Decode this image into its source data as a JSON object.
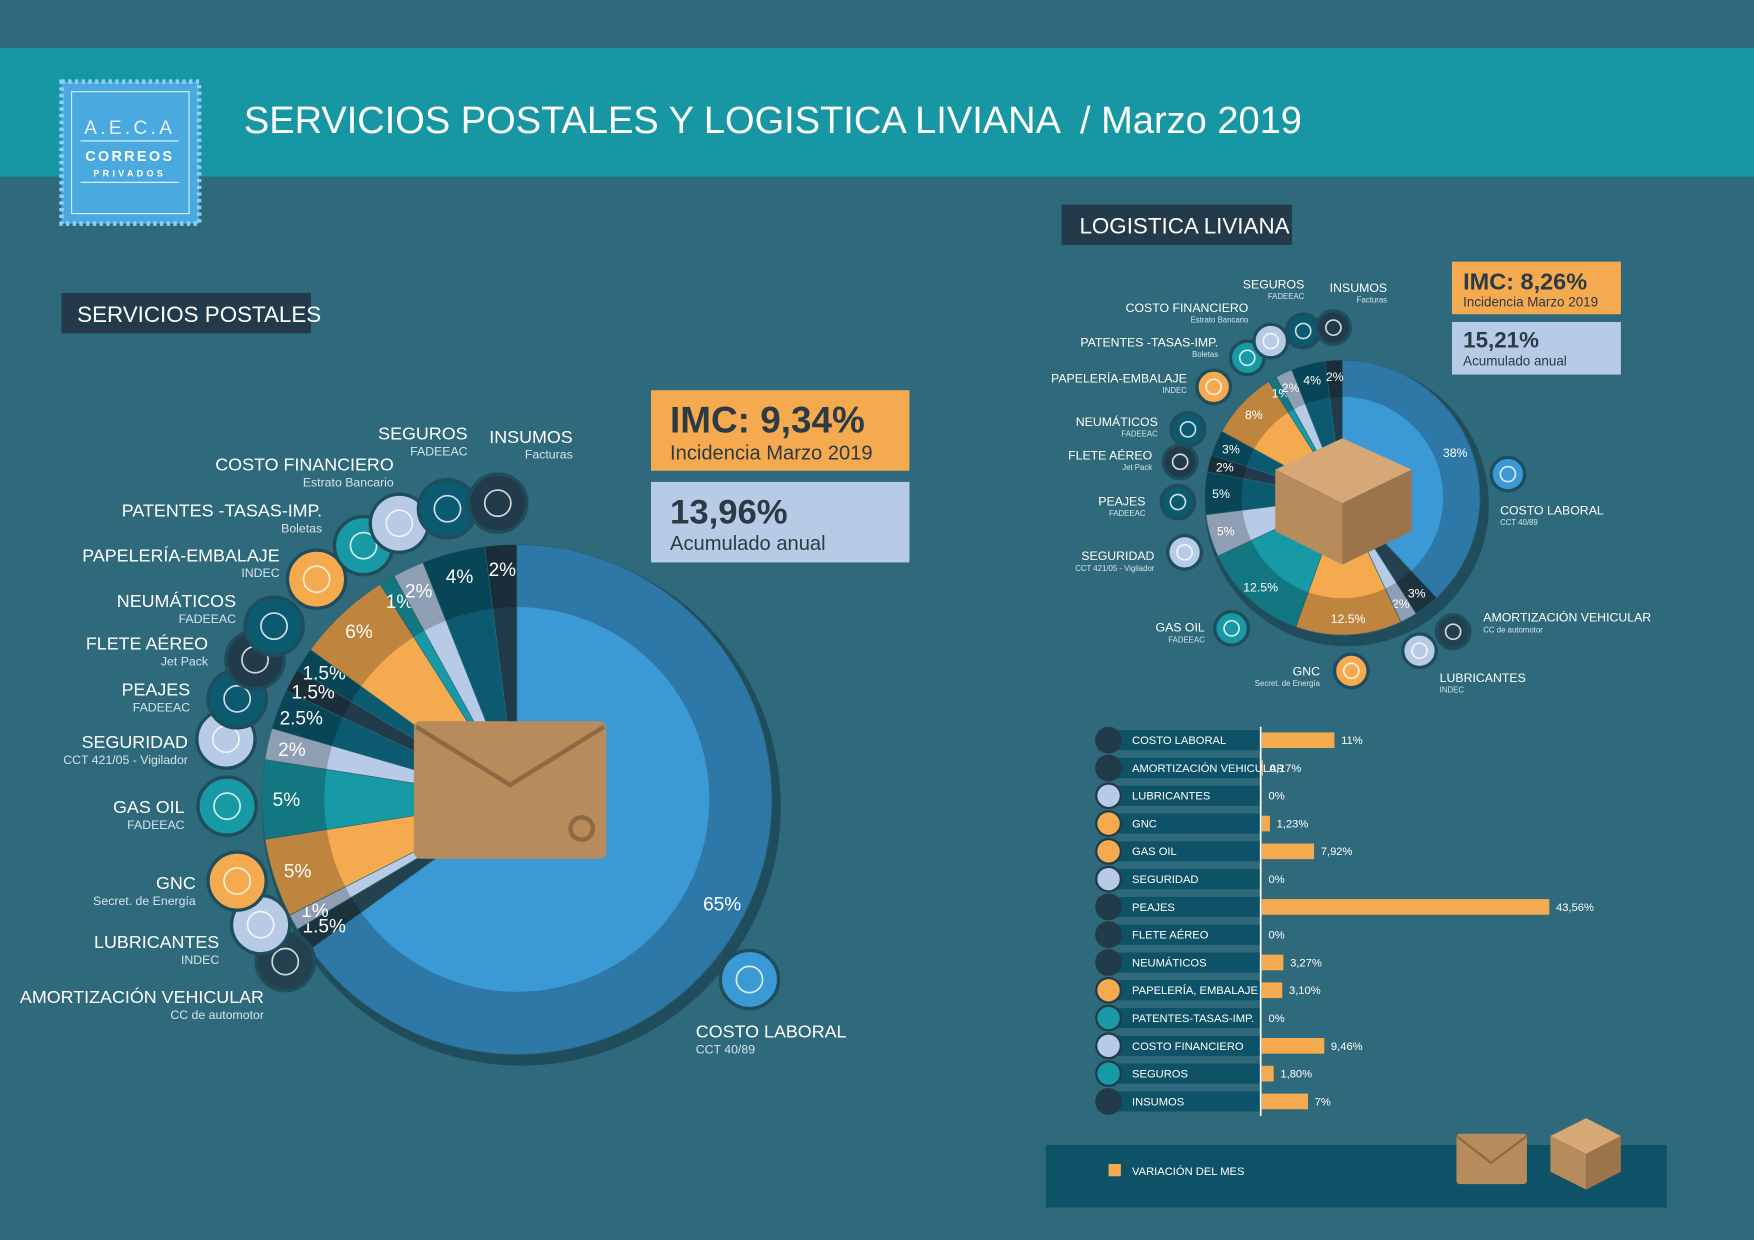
{
  "header": {
    "logo": [
      "A.E.C.A",
      "CORREOS",
      "PRIVADOS"
    ],
    "title": "SERVICIOS POSTALES Y LOGISTICA LIVIANA  / Marzo 2019"
  },
  "chart_data": [
    {
      "type": "pie",
      "title": "SERVICIOS POSTALES",
      "categories": [
        "COSTO LABORAL",
        "AMORTIZACIÓN VEHICULAR",
        "LUBRICANTES",
        "GNC",
        "GAS OIL",
        "SEGURIDAD",
        "PEAJES",
        "FLETE AÉREO",
        "NEUMÁTICOS",
        "PAPELERÍA-EMBALAJE",
        "PATENTES -TASAS-IMP.",
        "COSTO FINANCIERO",
        "SEGUROS",
        "INSUMOS"
      ],
      "sources": [
        "CCT 40/89",
        "CC de automotor",
        "INDEC",
        "Secret. de Energía",
        "FADEEAC",
        "CCT 421/05 - Vigilador",
        "FADEEAC",
        "Jet Pack",
        "FADEEAC",
        "INDEC",
        "Boletas",
        "Estrato Bancario",
        "FADEEAC",
        "Facturas"
      ],
      "values": [
        65,
        1.5,
        1,
        5,
        5,
        2,
        2.5,
        1.5,
        1.5,
        6,
        1,
        2,
        4,
        2
      ],
      "value_labels": [
        "65%",
        "1.5%",
        "1%",
        "5%",
        "5%",
        "2%",
        "2.5%",
        "1.5%",
        "1.5%",
        "6%",
        "1%",
        "2%",
        "4%",
        "2%"
      ],
      "colors": [
        "#3b9ad6",
        "#24414f",
        "#b7cbe6",
        "#f5aa4f",
        "#1899a6",
        "#b7cbe6",
        "#0b5a70",
        "#213b4a",
        "#0b5a70",
        "#f5aa4f",
        "#1899a6",
        "#b7cbe6",
        "#0b5a70",
        "#213b4a"
      ],
      "summary": [
        {
          "value": "IMC: 9,34%",
          "caption": "Incidencia Marzo 2019"
        },
        {
          "value": "13,96%",
          "caption": "Acumulado anual"
        }
      ]
    },
    {
      "type": "pie",
      "title": "LOGISTICA LIVIANA",
      "categories": [
        "COSTO LABORAL",
        "AMORTIZACIÓN VEHICULAR",
        "LUBRICANTES",
        "GNC",
        "GAS OIL",
        "SEGURIDAD",
        "PEAJES",
        "FLETE AÉREO",
        "NEUMÁTICOS",
        "PAPELERÍA-EMBALAJE",
        "PATENTES -TASAS-IMP.",
        "COSTO FINANCIERO",
        "SEGUROS",
        "INSUMOS"
      ],
      "sources": [
        "CCT 40/89",
        "CC de automotor",
        "INDEC",
        "Secret. de Energía",
        "FADEEAC",
        "CCT 421/05 - Vigilador",
        "FADEEAC",
        "Jet Pack",
        "FADEEAC",
        "INDEC",
        "Boletas",
        "Estrato Bancario",
        "FADEEAC",
        "Facturas"
      ],
      "values": [
        38,
        3,
        2,
        12.5,
        12.5,
        5,
        5,
        2,
        3,
        8,
        1,
        2,
        4,
        2
      ],
      "value_labels": [
        "38%",
        "3%",
        "2%",
        "12.5%",
        "12.5%",
        "5%",
        "5%",
        "2%",
        "3%",
        "8%",
        "1%",
        "2%",
        "4%",
        "2%"
      ],
      "colors": [
        "#3b9ad6",
        "#24414f",
        "#b7cbe6",
        "#f5aa4f",
        "#1899a6",
        "#b7cbe6",
        "#0b5a70",
        "#213b4a",
        "#0b5a70",
        "#f5aa4f",
        "#1899a6",
        "#b7cbe6",
        "#0b5a70",
        "#213b4a"
      ],
      "summary": [
        {
          "value": "IMC: 8,26%",
          "caption": "Incidencia Marzo 2019"
        },
        {
          "value": "15,21%",
          "caption": "Acumulado anual"
        }
      ]
    },
    {
      "type": "bar",
      "orientation": "horizontal",
      "categories": [
        "COSTO LABORAL",
        "AMORTIZACIÓN VEHICULAR",
        "LUBRICANTES",
        "GNC",
        "GAS OIL",
        "SEGURIDAD",
        "PEAJES",
        "FLETE AÉREO",
        "NEUMÁTICOS",
        "PAPELERÍA, EMBALAJE",
        "PATENTES-TASAS-IMP.",
        "COSTO FINANCIERO",
        "SEGUROS",
        "INSUMOS"
      ],
      "series": [
        {
          "name": "VARIACIÓN DEL MES",
          "color": "#f5aa4f",
          "values": [
            11,
            0.17,
            0,
            1.23,
            7.92,
            0,
            43.56,
            0,
            3.27,
            3.1,
            0,
            9.46,
            1.8,
            7
          ],
          "value_labels": [
            "11%",
            "0,17%",
            "0%",
            "1,23%",
            "7,92%",
            "0%",
            "43,56%",
            "0%",
            "3,27%",
            "3,10%",
            "0%",
            "9,46%",
            "1,80%",
            "7%"
          ]
        }
      ]
    }
  ]
}
